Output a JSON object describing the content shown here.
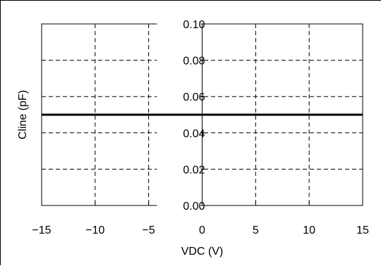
{
  "chart_data": {
    "type": "line",
    "title": "",
    "xlabel": "VDC (V)",
    "ylabel": "Cline (pF)",
    "xlim": [
      -15,
      15
    ],
    "ylim": [
      0,
      0.1
    ],
    "x_ticks": [
      -15,
      -10,
      -5,
      0,
      5,
      10,
      15
    ],
    "x_tick_labels": [
      "−15",
      "−10",
      "−5",
      "0",
      "5",
      "10",
      "15"
    ],
    "y_ticks": [
      0,
      0.02,
      0.04,
      0.06,
      0.08,
      0.1
    ],
    "y_tick_labels": [
      "0.00",
      "0.02",
      "0.04",
      "0.06",
      "0.08",
      "0.10"
    ],
    "grid": true,
    "legend": "none",
    "series": [
      {
        "x": [
          -15,
          15
        ],
        "y": [
          0.05,
          0.05
        ],
        "color": "#000000"
      }
    ]
  }
}
